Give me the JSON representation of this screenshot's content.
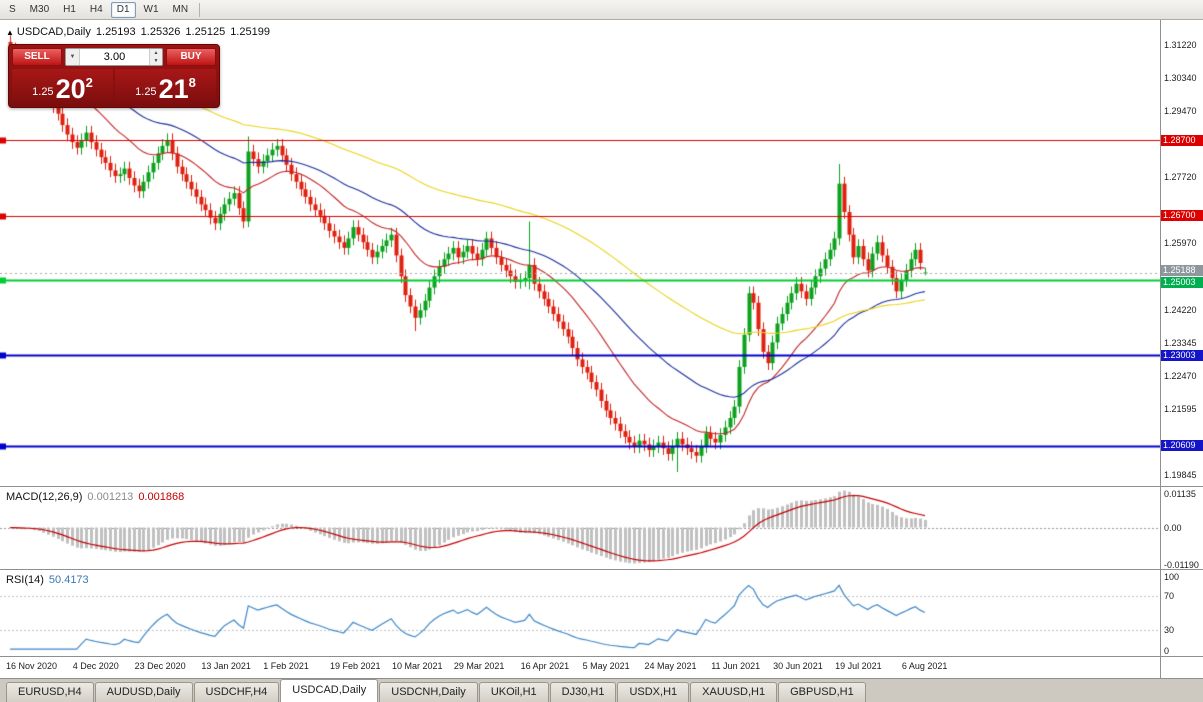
{
  "toolbar": {
    "timeframes": [
      "S",
      "M30",
      "H1",
      "H4",
      "D1",
      "W1",
      "MN"
    ],
    "active": "D1"
  },
  "chart": {
    "title": {
      "arrow": "▲",
      "symbol": "USDCAD,Daily",
      "open": "1.25193",
      "high": "1.25326",
      "low": "1.25125",
      "close": "1.25199"
    },
    "trade_panel": {
      "sell_label": "SELL",
      "buy_label": "BUY",
      "volume": "3.00",
      "volume_dropdown_icon": "▼",
      "spin_up_icon": "▲",
      "spin_down_icon": "▼",
      "sell_price": {
        "prefix": "1.25",
        "big": "20",
        "sup": "2"
      },
      "buy_price": {
        "prefix": "1.25",
        "big": "21",
        "sup": "8"
      }
    }
  },
  "chart_data": {
    "type": "candlestick",
    "symbol": "USDCAD",
    "timeframe": "Daily",
    "last_ohlc": {
      "open": 1.25193,
      "high": 1.25326,
      "low": 1.25125,
      "close": 1.25199
    },
    "colors": {
      "bull": "#0da21e",
      "bear": "#df2110",
      "macd_hist": "#c0c0c0",
      "macd_signal": "#c40000",
      "rsi_line": "#3f87c7",
      "current_price_line": "#a8a8a8"
    },
    "candles": {
      "first_open": 1.313,
      "wick_pad": 0.0018,
      "closes": [
        1.311,
        1.3095,
        1.3075,
        1.3085,
        1.31,
        1.307,
        1.304,
        1.301,
        1.299,
        1.296,
        1.294,
        1.291,
        1.2885,
        1.2865,
        1.285,
        1.287,
        1.289,
        1.2865,
        1.2845,
        1.2825,
        1.281,
        1.279,
        1.2775,
        1.278,
        1.2795,
        1.277,
        1.275,
        1.2735,
        1.276,
        1.2785,
        1.281,
        1.2835,
        1.2855,
        1.287,
        1.2835,
        1.28,
        1.278,
        1.276,
        1.274,
        1.272,
        1.27,
        1.2685,
        1.2665,
        1.265,
        1.2675,
        1.27,
        1.2715,
        1.273,
        1.269,
        1.2655,
        1.284,
        1.282,
        1.28,
        1.2815,
        1.283,
        1.2845,
        1.2855,
        1.283,
        1.2805,
        1.278,
        1.276,
        1.274,
        1.272,
        1.27,
        1.2685,
        1.267,
        1.265,
        1.263,
        1.2615,
        1.26,
        1.2585,
        1.261,
        1.264,
        1.262,
        1.26,
        1.258,
        1.256,
        1.2575,
        1.259,
        1.2605,
        1.262,
        1.2565,
        1.251,
        1.246,
        1.243,
        1.24,
        1.242,
        1.2445,
        1.248,
        1.251,
        1.2535,
        1.2555,
        1.257,
        1.2585,
        1.256,
        1.2575,
        1.259,
        1.257,
        1.2555,
        1.258,
        1.261,
        1.2585,
        1.256,
        1.254,
        1.2525,
        1.251,
        1.2495,
        1.25,
        1.2505,
        1.254,
        1.249,
        1.247,
        1.245,
        1.243,
        1.241,
        1.239,
        1.237,
        1.235,
        1.232,
        1.229,
        1.227,
        1.2255,
        1.223,
        1.221,
        1.218,
        1.2155,
        1.2135,
        1.212,
        1.21,
        1.2085,
        1.207,
        1.206,
        1.2075,
        1.2065,
        1.205,
        1.206,
        1.207,
        1.2055,
        1.204,
        1.206,
        1.208,
        1.2065,
        1.2055,
        1.2045,
        1.2035,
        1.206,
        1.2095,
        1.208,
        1.207,
        1.209,
        1.211,
        1.2135,
        1.2165,
        1.227,
        1.2355,
        1.2465,
        1.244,
        1.237,
        1.231,
        1.228,
        1.2335,
        1.2385,
        1.241,
        1.244,
        1.2465,
        1.249,
        1.247,
        1.245,
        1.248,
        1.251,
        1.253,
        1.2555,
        1.258,
        1.261,
        1.2755,
        1.268,
        1.262,
        1.256,
        1.259,
        1.2555,
        1.2525,
        1.257,
        1.26,
        1.2565,
        1.2535,
        1.2505,
        1.247,
        1.25,
        1.2525,
        1.2555,
        1.258,
        1.2545,
        1.252
      ],
      "overrides": {
        "50": {
          "open": 1.2655,
          "high": 1.288,
          "low": 1.264
        },
        "85": {
          "low": 1.2365
        },
        "109": {
          "high": 1.2655,
          "low": 1.2475
        },
        "140": {
          "low": 1.1992
        },
        "174": {
          "high": 1.2807
        },
        "192": {
          "open": 1.25193,
          "high": 1.25326,
          "low": 1.25125,
          "close": 1.25199
        }
      }
    },
    "moving_averages": [
      {
        "period": 20,
        "color": "#c22727"
      },
      {
        "period": 45,
        "color": "#1c2f9e"
      },
      {
        "period": 95,
        "color": "#e9d31d"
      }
    ],
    "horizontal_lines": [
      {
        "price": 1.287,
        "color": "#dd0000",
        "width": 1
      },
      {
        "price": 1.267,
        "color": "#dd0000",
        "width": 1
      },
      {
        "price": 1.25003,
        "color": "#00cc33",
        "width": 2
      },
      {
        "price": 1.23003,
        "color": "#0000cc",
        "width": 2
      },
      {
        "price": 1.20609,
        "color": "#0000cc",
        "width": 2
      }
    ],
    "current_price_line": {
      "price": 1.25188,
      "style": "dotted"
    },
    "y_axis": {
      "min": 1.1955,
      "max": 1.3188,
      "tick_labels": [
        "1.31220",
        "1.30340",
        "1.29470",
        "1.27720",
        "1.25970",
        "1.24220",
        "1.23345",
        "1.22470",
        "1.21595",
        "1.19845"
      ],
      "badges": [
        {
          "text": "1.28700",
          "bg": "#dd0000"
        },
        {
          "text": "1.26700",
          "bg": "#dd0000"
        },
        {
          "text": "1.25188",
          "bg": "#8f969c"
        },
        {
          "text": "1.25003",
          "bg": "#00b050"
        },
        {
          "text": "1.23003",
          "bg": "#1414c8"
        },
        {
          "text": "1.20609",
          "bg": "#1414c8"
        }
      ]
    },
    "x_axis": {
      "labels": [
        {
          "label": "16 Nov 2020",
          "i": 0
        },
        {
          "label": "4 Dec 2020",
          "i": 14
        },
        {
          "label": "23 Dec 2020",
          "i": 27
        },
        {
          "label": "13 Jan 2021",
          "i": 41
        },
        {
          "label": "1 Feb 2021",
          "i": 54
        },
        {
          "label": "19 Feb 2021",
          "i": 68
        },
        {
          "label": "10 Mar 2021",
          "i": 81
        },
        {
          "label": "29 Mar 2021",
          "i": 94
        },
        {
          "label": "16 Apr 2021",
          "i": 108
        },
        {
          "label": "5 May 2021",
          "i": 121
        },
        {
          "label": "24 May 2021",
          "i": 134
        },
        {
          "label": "11 Jun 2021",
          "i": 148
        },
        {
          "label": "30 Jun 2021",
          "i": 161
        },
        {
          "label": "19 Jul 2021",
          "i": 174
        },
        {
          "label": "6 Aug 2021",
          "i": 188
        }
      ]
    },
    "indicators": {
      "macd": {
        "label": "MACD(12,26,9)",
        "value_main": "0.001213",
        "value_signal": "0.001868",
        "fast": 12,
        "slow": 26,
        "signal": 9,
        "range": [
          -0.0125,
          0.0122
        ],
        "axis_labels": [
          "0.01135",
          "0.00",
          "-0.01190"
        ]
      },
      "rsi": {
        "label": "RSI(14)",
        "value": "50.4173",
        "period": 14,
        "range": [
          0,
          100
        ],
        "levels": [
          70,
          30
        ],
        "axis_labels": [
          "100",
          "70",
          "30",
          "0"
        ]
      }
    }
  },
  "tabs": {
    "active": "USDCAD,Daily",
    "items": [
      "EURUSD,H4",
      "AUDUSD,Daily",
      "USDCHF,H4",
      "USDCAD,Daily",
      "USDCNH,Daily",
      "UKOil,H1",
      "DJ30,H1",
      "USDX,H1",
      "XAUUSD,H1",
      "GBPUSD,H1"
    ]
  }
}
